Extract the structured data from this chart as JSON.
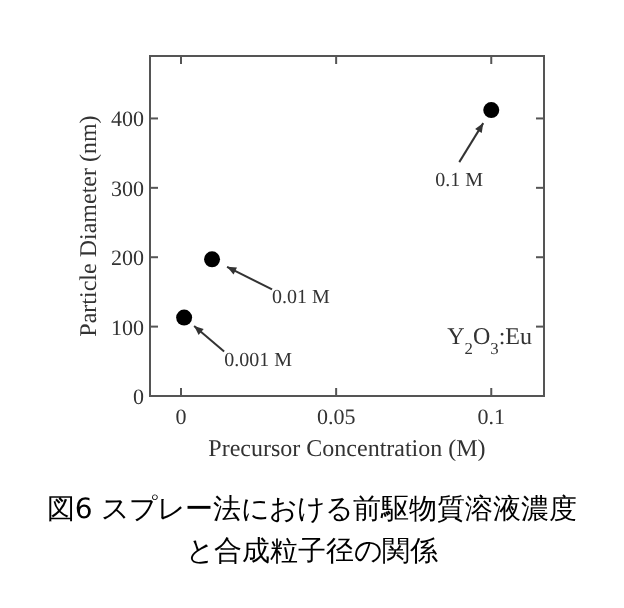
{
  "chart_data": {
    "type": "scatter",
    "title": "図6 スプレー法における前駆物質溶液濃度と合成粒子径の関係",
    "xlabel": "Precursor Concentration (M)",
    "ylabel": "Particle Diameter (nm)",
    "x": [
      0.001,
      0.01,
      0.1
    ],
    "values": [
      113,
      197,
      412
    ],
    "color": "#000000",
    "marker": "circle",
    "xlim": [
      -0.01,
      0.117
    ],
    "ylim": [
      0,
      490
    ],
    "xticks": [
      0,
      0.05,
      0.1
    ],
    "yticks": [
      0,
      100,
      200,
      300,
      400
    ],
    "annotations": [
      {
        "text": "0.001 M",
        "x": 0.001,
        "y": 113
      },
      {
        "text": "0.01 M",
        "x": 0.01,
        "y": 197
      },
      {
        "text": "0.1 M",
        "x": 0.1,
        "y": 412
      },
      "Y$_{2}$O$_{3}$:Eu"
    ]
  }
}
